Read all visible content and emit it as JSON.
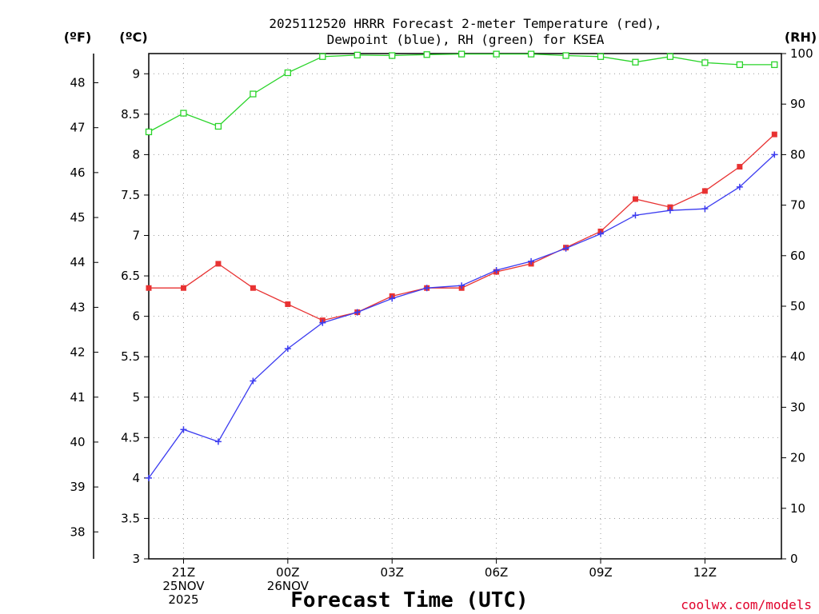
{
  "chart_data": {
    "type": "line",
    "title_line1": "2025112520 HRRR Forecast 2-meter Temperature (red),",
    "title_line2": "Dewpoint (blue), RH (green) for KSEA",
    "xlabel": "Forecast Time (UTC)",
    "credit": "coolwx.com/models",
    "units": {
      "fahrenheit": "(ºF)",
      "celsius": "(ºC)",
      "rh": "(RH)"
    },
    "x": [
      20,
      21,
      22,
      23,
      24,
      25,
      26,
      27,
      28,
      29,
      30,
      31,
      32,
      33,
      34,
      35,
      36,
      37,
      38
    ],
    "xlim": [
      20,
      38.2
    ],
    "x_ticks": [
      {
        "x": 21,
        "lines": [
          "21Z",
          "25NOV",
          "2025"
        ]
      },
      {
        "x": 24,
        "lines": [
          "00Z",
          "26NOV"
        ]
      },
      {
        "x": 27,
        "lines": [
          "03Z"
        ]
      },
      {
        "x": 30,
        "lines": [
          "06Z"
        ]
      },
      {
        "x": 33,
        "lines": [
          "09Z"
        ]
      },
      {
        "x": 36,
        "lines": [
          "12Z"
        ]
      }
    ],
    "y_celsius": {
      "range": [
        3,
        9.25
      ],
      "ticks": [
        3,
        3.5,
        4,
        4.5,
        5,
        5.5,
        6,
        6.5,
        7,
        7.5,
        8,
        8.5,
        9
      ]
    },
    "y_fahrenheit": {
      "ticks": [
        38,
        39,
        40,
        41,
        42,
        43,
        44,
        45,
        46,
        47,
        48
      ]
    },
    "y_rh": {
      "range": [
        0,
        100
      ],
      "ticks": [
        0,
        10,
        20,
        30,
        40,
        50,
        60,
        70,
        80,
        90,
        100
      ]
    },
    "series": [
      {
        "name": "Temperature",
        "axis": "celsius",
        "color": "#e83232",
        "marker": "filled-square",
        "values": [
          6.35,
          6.35,
          6.65,
          6.35,
          6.15,
          5.95,
          6.05,
          6.25,
          6.35,
          6.35,
          6.55,
          6.65,
          6.85,
          7.05,
          7.45,
          7.35,
          7.55,
          7.85,
          8.25
        ]
      },
      {
        "name": "Dewpoint",
        "axis": "celsius",
        "color": "#3c3cf0",
        "marker": "plus",
        "values": [
          4.0,
          4.6,
          4.45,
          5.2,
          5.6,
          5.92,
          6.05,
          6.22,
          6.35,
          6.38,
          6.57,
          6.68,
          6.84,
          7.02,
          7.25,
          7.31,
          7.33,
          7.6,
          8.0
        ]
      },
      {
        "name": "RH",
        "axis": "rh",
        "color": "#2ad42a",
        "marker": "hollow-square",
        "values": [
          84.5,
          88.2,
          85.6,
          92,
          96.2,
          99.4,
          99.7,
          99.6,
          99.8,
          99.9,
          99.9,
          99.9,
          99.6,
          99.4,
          98.3,
          99.4,
          98.2,
          97.8,
          97.8
        ]
      }
    ]
  }
}
